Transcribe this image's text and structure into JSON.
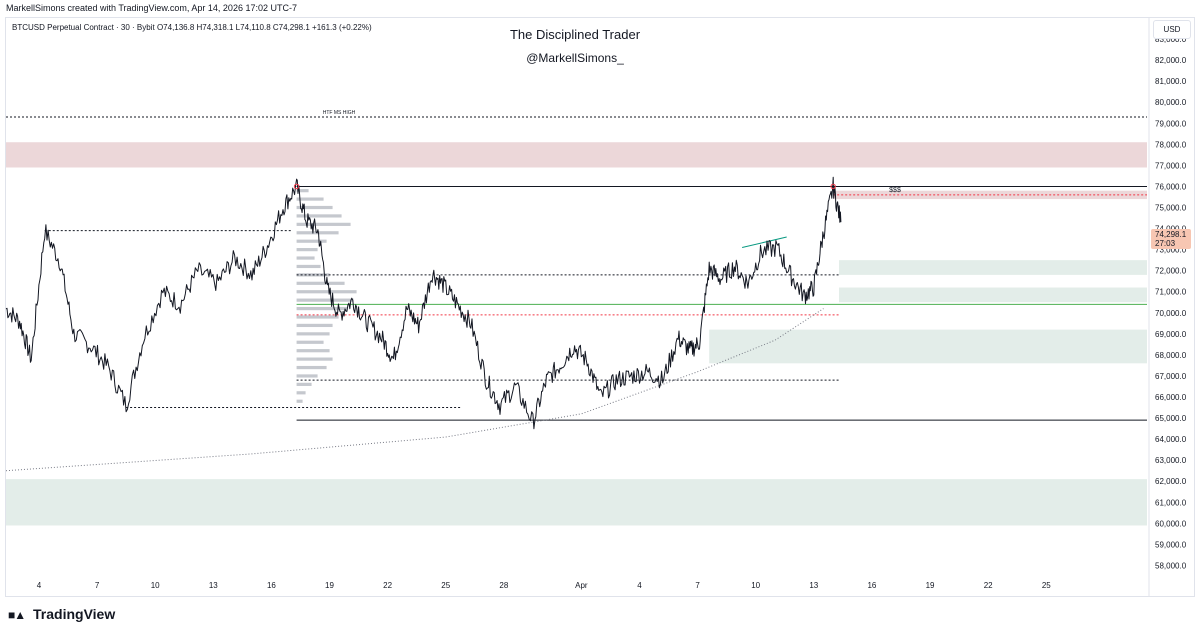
{
  "header": {
    "caption": "MarkellSimons created with TradingView.com, Apr 14, 2026 17:02 UTC-7",
    "symbol_info": "BTCUSD Perpetual Contract · 30 · Bybit  O74,136.8  H74,318.1  L74,110.8  C74,298.1  +161.3 (+0.22%)"
  },
  "watermark": {
    "title": "The Disciplined Trader",
    "handle": "@MarkellSimons_"
  },
  "price_axis": {
    "currency": "USD"
  },
  "last_price": {
    "value": "74,298.1",
    "countdown": "27:03"
  },
  "footer": {
    "brand": "TradingView",
    "logo": "tradingview-logo-icon"
  },
  "colors": {
    "candle": "#131722",
    "supply_zone": "#ecd7d9",
    "demand_zone": "#e3ede9",
    "green_line": "#4caf50",
    "red_marker": "#f23645",
    "price_tag": "#f7c6b2"
  },
  "chart_data": {
    "type": "line",
    "title": "",
    "xlabel": "",
    "ylabel": "",
    "y_range": [
      57500,
      84000
    ],
    "y_ticks": [
      "83,000.0",
      "82,000.0",
      "81,000.0",
      "80,000.0",
      "79,000.0",
      "78,000.0",
      "77,000.0",
      "76,000.0",
      "75,000.0",
      "74,000.0",
      "73,000.0",
      "72,000.0",
      "71,000.0",
      "70,000.0",
      "69,000.0",
      "68,000.0",
      "67,000.0",
      "66,000.0",
      "65,000.0",
      "64,000.0",
      "63,000.0",
      "62,000.0",
      "61,000.0",
      "60,000.0",
      "59,000.0",
      "58,000.0"
    ],
    "x_ticks": [
      "4",
      "7",
      "10",
      "13",
      "16",
      "19",
      "22",
      "25",
      "28",
      "Apr",
      "4",
      "7",
      "10",
      "13",
      "16",
      "19",
      "22",
      "25"
    ],
    "x_tick_days": [
      4,
      7,
      10,
      13,
      16,
      19,
      22,
      25,
      28,
      32,
      35,
      38,
      41,
      44,
      47,
      50,
      53,
      56
    ],
    "x_day_range": [
      2.3,
      61.2
    ],
    "x_day_note": "x values are calendar days of March; 32 = Apr 1",
    "series": [
      {
        "points": [
          [
            2.3,
            70200
          ],
          [
            3.0,
            69600
          ],
          [
            3.6,
            67800
          ],
          [
            4.3,
            73900
          ],
          [
            5.1,
            72400
          ],
          [
            5.8,
            69000
          ],
          [
            6.7,
            68400
          ],
          [
            7.6,
            67400
          ],
          [
            8.5,
            65600
          ],
          [
            9.4,
            68800
          ],
          [
            10.4,
            71000
          ],
          [
            11.3,
            70400
          ],
          [
            12.2,
            72000
          ],
          [
            13.2,
            71400
          ],
          [
            14.1,
            72600
          ],
          [
            15.0,
            71800
          ],
          [
            15.8,
            73200
          ],
          [
            16.6,
            75000
          ],
          [
            17.3,
            76000
          ],
          [
            17.8,
            74400
          ],
          [
            18.4,
            73900
          ],
          [
            18.9,
            71100
          ],
          [
            19.5,
            69900
          ],
          [
            20.2,
            70600
          ],
          [
            20.9,
            69600
          ],
          [
            21.7,
            68800
          ],
          [
            22.3,
            67800
          ],
          [
            23.0,
            70200
          ],
          [
            23.6,
            69400
          ],
          [
            24.3,
            71900
          ],
          [
            24.9,
            71300
          ],
          [
            25.6,
            70400
          ],
          [
            26.3,
            69500
          ],
          [
            27.1,
            66800
          ],
          [
            27.8,
            65600
          ],
          [
            28.6,
            66500
          ],
          [
            29.5,
            64800
          ],
          [
            30.2,
            66800
          ],
          [
            30.9,
            67500
          ],
          [
            31.6,
            68400
          ],
          [
            32.3,
            67700
          ],
          [
            33.0,
            66000
          ],
          [
            33.8,
            66800
          ],
          [
            34.6,
            67000
          ],
          [
            35.4,
            67200
          ],
          [
            36.2,
            66800
          ],
          [
            37.0,
            68800
          ],
          [
            37.6,
            68200
          ],
          [
            38.1,
            68600
          ],
          [
            38.6,
            72100
          ],
          [
            39.2,
            71600
          ],
          [
            39.9,
            72200
          ],
          [
            40.6,
            71400
          ],
          [
            41.3,
            72900
          ],
          [
            42.1,
            73100
          ],
          [
            42.8,
            71800
          ],
          [
            43.5,
            70800
          ],
          [
            44.0,
            71200
          ],
          [
            44.5,
            73800
          ],
          [
            45.0,
            76000
          ],
          [
            45.4,
            74300
          ]
        ]
      }
    ],
    "horizontal_levels": [
      {
        "price": 79300,
        "x_start_day": 2.3,
        "x_end_day": 61.2,
        "style": "dotted",
        "label": "HTF MS HIGH"
      },
      {
        "price": 76000,
        "x_start_day": 17.3,
        "x_end_day": 61.2,
        "style": "solid",
        "label": ""
      },
      {
        "price": 75600,
        "x_start_day": 45.0,
        "x_end_day": 61.2,
        "style": "dotted",
        "label": "$$$"
      },
      {
        "price": 73900,
        "x_start_day": 4.3,
        "x_end_day": 17.0,
        "style": "dotted",
        "label": ""
      },
      {
        "price": 71800,
        "x_start_day": 17.3,
        "x_end_day": 45.3,
        "style": "dotted",
        "label": ""
      },
      {
        "price": 70400,
        "x_start_day": 17.3,
        "x_end_day": 61.2,
        "style": "solid-green",
        "label": ""
      },
      {
        "price": 69900,
        "x_start_day": 17.3,
        "x_end_day": 45.3,
        "style": "dotted-red",
        "label": ""
      },
      {
        "price": 66800,
        "x_start_day": 17.3,
        "x_end_day": 45.3,
        "style": "dotted",
        "label": ""
      },
      {
        "price": 65500,
        "x_start_day": 8.5,
        "x_end_day": 25.8,
        "style": "dotted",
        "label": ""
      },
      {
        "price": 64900,
        "x_start_day": 17.3,
        "x_end_day": 61.2,
        "style": "solid",
        "label": ""
      }
    ],
    "zones": [
      {
        "kind": "supply",
        "y_low": 76900,
        "y_high": 78100,
        "x_start_day": 2.3,
        "x_end_day": 61.2
      },
      {
        "kind": "supply",
        "y_low": 75400,
        "y_high": 75800,
        "x_start_day": 45.0,
        "x_end_day": 61.2
      },
      {
        "kind": "demand",
        "y_low": 71800,
        "y_high": 72500,
        "x_start_day": 45.3,
        "x_end_day": 61.2
      },
      {
        "kind": "demand",
        "y_low": 70500,
        "y_high": 71200,
        "x_start_day": 45.3,
        "x_end_day": 61.2
      },
      {
        "kind": "demand",
        "y_low": 67600,
        "y_high": 69200,
        "x_start_day": 38.6,
        "x_end_day": 61.2
      },
      {
        "kind": "demand",
        "y_low": 59900,
        "y_high": 62100,
        "x_start_day": 2.3,
        "x_end_day": 61.2
      }
    ],
    "volume_profile": {
      "x_start_day": 17.3,
      "bins": [
        {
          "price": 75800,
          "w": 0.2
        },
        {
          "price": 75400,
          "w": 0.45
        },
        {
          "price": 75000,
          "w": 0.6
        },
        {
          "price": 74600,
          "w": 0.75
        },
        {
          "price": 74200,
          "w": 0.9
        },
        {
          "price": 73800,
          "w": 0.7
        },
        {
          "price": 73400,
          "w": 0.5
        },
        {
          "price": 73000,
          "w": 0.35
        },
        {
          "price": 72600,
          "w": 0.3
        },
        {
          "price": 72200,
          "w": 0.4
        },
        {
          "price": 71800,
          "w": 0.55
        },
        {
          "price": 71400,
          "w": 0.8
        },
        {
          "price": 71000,
          "w": 1.0
        },
        {
          "price": 70600,
          "w": 0.95
        },
        {
          "price": 70200,
          "w": 0.85
        },
        {
          "price": 69800,
          "w": 0.7
        },
        {
          "price": 69400,
          "w": 0.6
        },
        {
          "price": 69000,
          "w": 0.55
        },
        {
          "price": 68600,
          "w": 0.45
        },
        {
          "price": 68200,
          "w": 0.55
        },
        {
          "price": 67800,
          "w": 0.6
        },
        {
          "price": 67400,
          "w": 0.5
        },
        {
          "price": 67000,
          "w": 0.35
        },
        {
          "price": 66600,
          "w": 0.25
        },
        {
          "price": 66200,
          "w": 0.15
        },
        {
          "price": 65800,
          "w": 0.1
        }
      ]
    },
    "curve": {
      "style": "dotted",
      "points": [
        [
          2.3,
          62500
        ],
        [
          15,
          63300
        ],
        [
          25,
          64100
        ],
        [
          32,
          65200
        ],
        [
          38,
          67200
        ],
        [
          42,
          68700
        ],
        [
          44.5,
          70200
        ]
      ]
    },
    "trend_segment": {
      "points": [
        [
          40.3,
          73100
        ],
        [
          42.6,
          73600
        ]
      ]
    },
    "markers": [
      {
        "day": 17.3,
        "price": 76000
      },
      {
        "day": 45.0,
        "price": 76000
      }
    ]
  }
}
